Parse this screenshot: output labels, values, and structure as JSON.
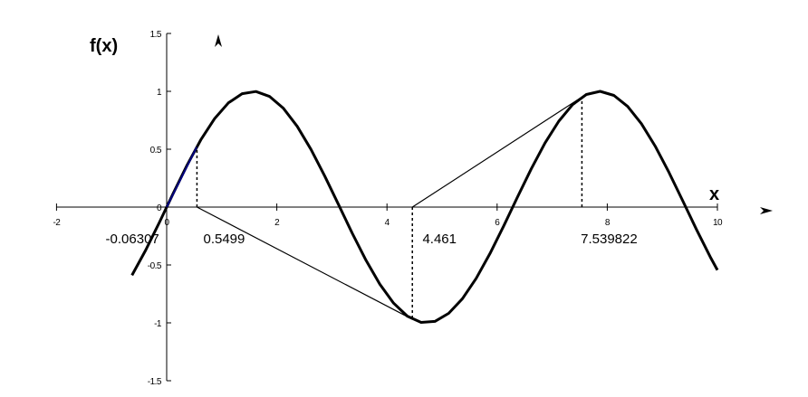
{
  "chart_data": {
    "type": "line",
    "title": "",
    "xlabel": "x",
    "ylabel": "f(x)",
    "xlim": [
      -2,
      10
    ],
    "ylim": [
      -1.5,
      1.5
    ],
    "x_ticks": [
      "-2",
      "0",
      "2",
      "4",
      "6",
      "8",
      "10"
    ],
    "y_ticks": [
      "1.5",
      "1",
      "0.5",
      "0",
      "-0.5",
      "-1",
      "-1.5"
    ],
    "grid": false,
    "legend": "none",
    "series": [
      {
        "function": "sin(x)",
        "x_range": [
          -0.63,
          10
        ],
        "color": "#000000"
      }
    ],
    "tangent_segments": [
      {
        "from": [
          0,
          0
        ],
        "to": [
          0.5499,
          0.5226
        ],
        "color": "#000080"
      },
      {
        "from": [
          0.5499,
          0
        ],
        "to": [
          4.461,
          -0.9694
        ],
        "color": "#000000"
      },
      {
        "from": [
          4.461,
          0
        ],
        "to": [
          7.539822,
          0.9511
        ],
        "color": "#000000"
      }
    ],
    "dotted_verticals": [
      {
        "x": 0.5499,
        "y": 0.5226
      },
      {
        "x": 4.461,
        "y": -0.9694
      },
      {
        "x": 7.539822,
        "y": 0.9511
      }
    ],
    "annotations": [
      {
        "text": "-0.06307",
        "x": -0.06307
      },
      {
        "text": "0.5499",
        "x": 0.5499
      },
      {
        "text": "4.461",
        "x": 4.461
      },
      {
        "text": "7.539822",
        "x": 7.539822
      }
    ]
  }
}
